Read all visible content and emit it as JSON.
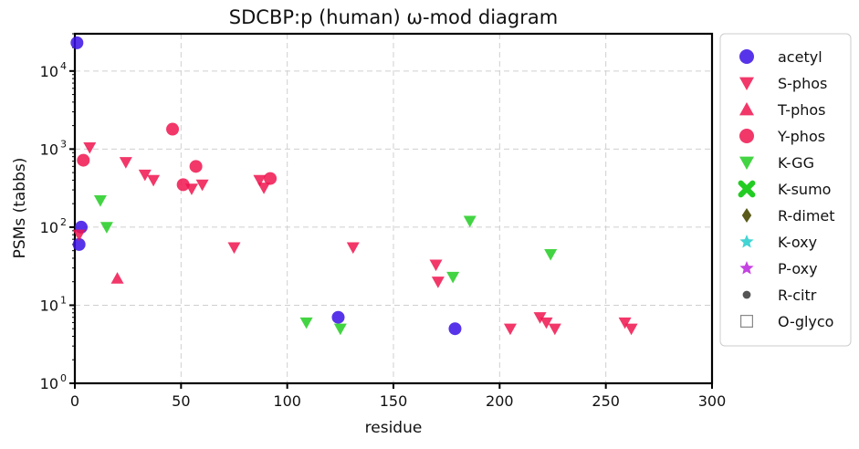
{
  "chart_data": {
    "type": "scatter",
    "title": "SDCBP:p (human) ω-mod diagram",
    "xlabel": "residue",
    "ylabel": "PSMs (tabbs)",
    "xlim": [
      0,
      300
    ],
    "ylim": [
      1,
      30000
    ],
    "yscale": "log",
    "grid": true,
    "legend_position": "right-outside",
    "x_ticks": [
      "0",
      "50",
      "100",
      "150",
      "200",
      "250",
      "300"
    ],
    "x_tick_values": [
      0,
      50,
      100,
      150,
      200,
      250,
      300
    ],
    "y_ticks": [
      "10^0",
      "10^1",
      "10^2",
      "10^3",
      "10^4"
    ],
    "y_tick_values": [
      1,
      10,
      100,
      1000,
      10000
    ],
    "series": [
      {
        "name": "acetyl",
        "marker": "circle",
        "color": "#3a10e5",
        "points": [
          [
            1,
            23000
          ],
          [
            2,
            60
          ],
          [
            3,
            100
          ],
          [
            124,
            7
          ],
          [
            179,
            5
          ]
        ]
      },
      {
        "name": "S-phos",
        "marker": "triangle-down",
        "color": "#f0144f",
        "points": [
          [
            2,
            80
          ],
          [
            7,
            1050
          ],
          [
            24,
            680
          ],
          [
            33,
            470
          ],
          [
            37,
            400
          ],
          [
            55,
            310
          ],
          [
            60,
            350
          ],
          [
            75,
            55
          ],
          [
            87,
            400
          ],
          [
            89,
            320
          ],
          [
            131,
            55
          ],
          [
            170,
            33
          ],
          [
            171,
            20
          ],
          [
            205,
            5
          ],
          [
            219,
            7
          ],
          [
            222,
            6
          ],
          [
            226,
            5
          ],
          [
            259,
            6
          ],
          [
            262,
            5
          ]
        ]
      },
      {
        "name": "T-phos",
        "marker": "triangle-up",
        "color": "#f0144f",
        "points": [
          [
            20,
            22
          ]
        ]
      },
      {
        "name": "Y-phos",
        "marker": "circle",
        "color": "#f0144f",
        "points": [
          [
            4,
            720
          ],
          [
            46,
            1800
          ],
          [
            51,
            350
          ],
          [
            57,
            600
          ],
          [
            92,
            420
          ]
        ]
      },
      {
        "name": "K-GG",
        "marker": "triangle-down",
        "color": "#22cc22",
        "points": [
          [
            12,
            220
          ],
          [
            15,
            100
          ],
          [
            109,
            6
          ],
          [
            125,
            5
          ],
          [
            178,
            23
          ],
          [
            186,
            120
          ],
          [
            224,
            45
          ]
        ]
      },
      {
        "name": "K-sumo",
        "marker": "x",
        "color": "#22cc22",
        "points": []
      },
      {
        "name": "R-dimet",
        "marker": "diamond",
        "color": "#5a5a1a",
        "points": []
      },
      {
        "name": "K-oxy",
        "marker": "star",
        "color": "#22cccc",
        "points": []
      },
      {
        "name": "P-oxy",
        "marker": "star",
        "color": "#bb22dd",
        "points": []
      },
      {
        "name": "R-citr",
        "marker": "dot",
        "color": "#555555",
        "points": []
      },
      {
        "name": "O-glyco",
        "marker": "square-open",
        "color": "#888888",
        "points": []
      }
    ]
  }
}
